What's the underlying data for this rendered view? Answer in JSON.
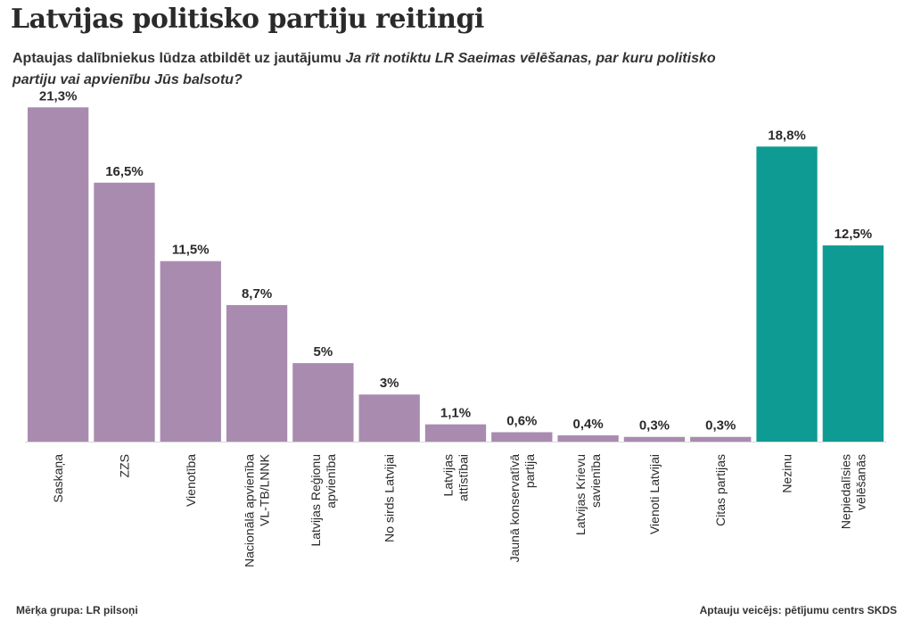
{
  "title": "Latvijas politisko partiju reitingi",
  "subtitle": {
    "plain": "Aptaujas dalībniekus lūdza atbildēt uz jautājumu ",
    "question": "Ja rīt notiktu LR Saeimas vēlēšanas, par kuru politisko partiju vai apvienību Jūs balsotu?"
  },
  "footer": {
    "left": "Mērķa grupa: LR pilsoņi",
    "right": "Aptauju veicējs: pētījumu centrs SKDS"
  },
  "colors": {
    "party": "#a98bb0",
    "other": "#0e9b93"
  },
  "chart_data": {
    "type": "bar",
    "ylim": [
      0,
      22
    ],
    "categories": [
      "Saskaņa",
      "ZZS",
      "Vienotība",
      "Nacionālā apvienība VL-TB/LNNK",
      "Latvijas Reģionu apvienība",
      "No sirds Latvijai",
      "Latvijas attīstībai",
      "Jaunā konservatīvā partija",
      "Latvijas Krievu savienība",
      "Vienoti Latvijai",
      "Citas partijas",
      "Nezinu",
      "Nepiedalīsies vēlēšanās"
    ],
    "values": [
      21.3,
      16.5,
      11.5,
      8.7,
      5,
      3,
      1.1,
      0.6,
      0.4,
      0.3,
      0.3,
      18.8,
      12.5
    ],
    "data_labels": [
      "21,3%",
      "16,5%",
      "11,5%",
      "8,7%",
      "5%",
      "3%",
      "1,1%",
      "0,6%",
      "0,4%",
      "0,3%",
      "0,3%",
      "18,8%",
      "12,5%"
    ],
    "bar_groups": [
      "party",
      "party",
      "party",
      "party",
      "party",
      "party",
      "party",
      "party",
      "party",
      "party",
      "party",
      "other",
      "other"
    ]
  }
}
